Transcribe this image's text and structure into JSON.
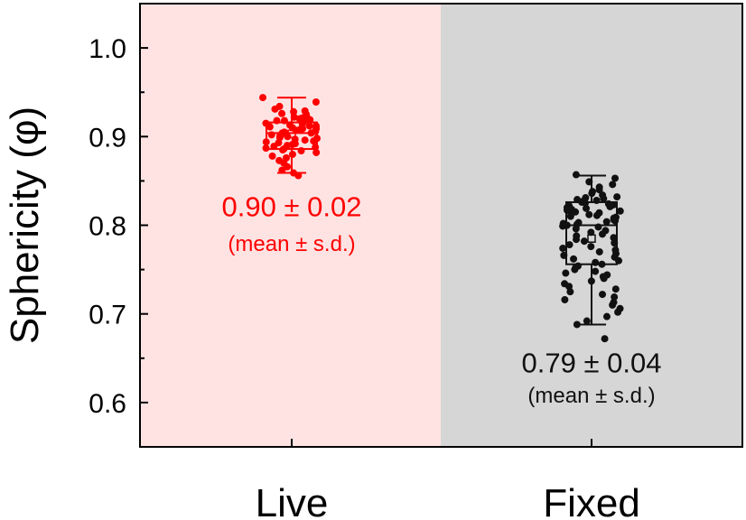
{
  "chart_data": {
    "type": "box-scatter",
    "ylabel": "Sphericity (φ)",
    "ylim": [
      0.55,
      1.05
    ],
    "yticks": [
      "0.6",
      "0.7",
      "0.8",
      "0.9",
      "1.0"
    ],
    "yticks_values": [
      0.6,
      0.7,
      0.8,
      0.9,
      1.0
    ],
    "categories": [
      "Live",
      "Fixed"
    ],
    "background_colors": [
      "#ffe3e3",
      "#d6d6d6"
    ],
    "series": [
      {
        "name": "Live",
        "color": "#ff0000",
        "box": {
          "whisker_low": 0.859,
          "q1": 0.886,
          "median": 0.904,
          "q3": 0.916,
          "whisker_high": 0.944,
          "mean": 0.903
        },
        "annotation": {
          "value": "0.90 ± 0.02",
          "note": "(mean ± s.d.)",
          "y_value": 0.81,
          "note_y_value": 0.771
        },
        "points": [
          0.944,
          0.939,
          0.934,
          0.931,
          0.929,
          0.928,
          0.926,
          0.925,
          0.923,
          0.922,
          0.921,
          0.92,
          0.919,
          0.918,
          0.918,
          0.917,
          0.916,
          0.915,
          0.914,
          0.913,
          0.912,
          0.912,
          0.911,
          0.91,
          0.909,
          0.909,
          0.908,
          0.907,
          0.906,
          0.906,
          0.905,
          0.904,
          0.904,
          0.903,
          0.902,
          0.901,
          0.9,
          0.899,
          0.898,
          0.897,
          0.896,
          0.895,
          0.894,
          0.893,
          0.892,
          0.891,
          0.89,
          0.889,
          0.888,
          0.887,
          0.886,
          0.885,
          0.884,
          0.882,
          0.88,
          0.878,
          0.876,
          0.873,
          0.87,
          0.866,
          0.862,
          0.859,
          0.856
        ]
      },
      {
        "name": "Fixed",
        "color": "#111111",
        "box": {
          "whisker_low": 0.688,
          "q1": 0.756,
          "median": 0.8,
          "q3": 0.826,
          "whisker_high": 0.856,
          "mean": 0.785
        },
        "annotation": {
          "value": "0.79 ± 0.04",
          "note": "(mean ± s.d.)",
          "y_value": 0.634,
          "note_y_value": 0.6
        },
        "points": [
          0.857,
          0.853,
          0.849,
          0.846,
          0.843,
          0.84,
          0.838,
          0.836,
          0.834,
          0.832,
          0.831,
          0.83,
          0.829,
          0.828,
          0.827,
          0.826,
          0.825,
          0.824,
          0.823,
          0.822,
          0.821,
          0.82,
          0.819,
          0.818,
          0.817,
          0.816,
          0.815,
          0.814,
          0.813,
          0.812,
          0.811,
          0.81,
          0.809,
          0.808,
          0.807,
          0.806,
          0.805,
          0.804,
          0.803,
          0.802,
          0.801,
          0.8,
          0.799,
          0.798,
          0.796,
          0.794,
          0.792,
          0.79,
          0.788,
          0.786,
          0.784,
          0.782,
          0.78,
          0.778,
          0.776,
          0.774,
          0.772,
          0.77,
          0.768,
          0.766,
          0.764,
          0.762,
          0.76,
          0.758,
          0.756,
          0.754,
          0.752,
          0.75,
          0.748,
          0.746,
          0.744,
          0.742,
          0.74,
          0.737,
          0.734,
          0.731,
          0.728,
          0.725,
          0.722,
          0.719,
          0.716,
          0.713,
          0.71,
          0.706,
          0.702,
          0.697,
          0.692,
          0.688,
          0.672
        ]
      }
    ]
  }
}
